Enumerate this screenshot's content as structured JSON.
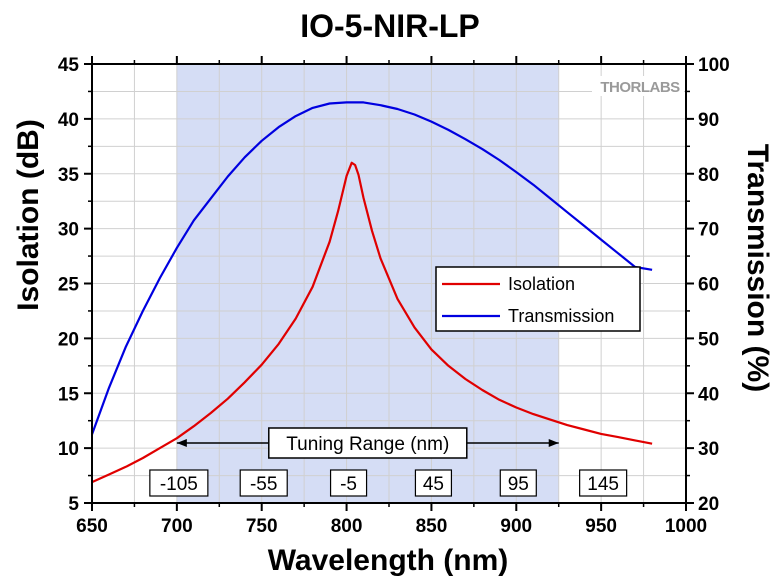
{
  "chart_data": {
    "type": "line",
    "title": "IO-5-NIR-LP",
    "xlabel": "Wavelength (nm)",
    "ylabel": "Isolation (dB)",
    "y2label": "Transmission (%)",
    "xlim": [
      650,
      1000
    ],
    "ylim": [
      5,
      45
    ],
    "y2lim": [
      20,
      100
    ],
    "xticks": [
      650,
      700,
      750,
      800,
      850,
      900,
      950,
      1000
    ],
    "yticks": [
      5,
      10,
      15,
      20,
      25,
      30,
      35,
      40,
      45
    ],
    "y2ticks": [
      20,
      30,
      40,
      50,
      60,
      70,
      80,
      90,
      100
    ],
    "grid": true,
    "legend_position": "right-middle",
    "watermark": "THORLABS",
    "tuning_range": {
      "label": "Tuning Range (nm)",
      "x_start": 700,
      "x_end": 925,
      "offsets": [
        {
          "label": "-105",
          "x": 700
        },
        {
          "label": "-55",
          "x": 750
        },
        {
          "label": "-5",
          "x": 800
        },
        {
          "label": "45",
          "x": 850
        },
        {
          "label": "95",
          "x": 900
        },
        {
          "label": "145",
          "x": 950
        }
      ]
    },
    "series": [
      {
        "name": "Isolation",
        "axis": "left",
        "color": "#e00000",
        "x": [
          650,
          660,
          670,
          680,
          690,
          700,
          710,
          720,
          730,
          740,
          750,
          760,
          770,
          780,
          790,
          795,
          800,
          803,
          805,
          807,
          810,
          815,
          820,
          830,
          840,
          850,
          860,
          870,
          880,
          890,
          900,
          910,
          920,
          930,
          940,
          950,
          960,
          970,
          980
        ],
        "y": [
          6.9,
          7.6,
          8.3,
          9.1,
          10.0,
          10.9,
          12.0,
          13.2,
          14.5,
          16.0,
          17.6,
          19.5,
          21.8,
          24.7,
          28.8,
          31.6,
          34.8,
          36.0,
          35.8,
          34.9,
          32.8,
          29.8,
          27.3,
          23.6,
          21.0,
          19.0,
          17.5,
          16.3,
          15.3,
          14.4,
          13.7,
          13.1,
          12.6,
          12.1,
          11.7,
          11.3,
          11.0,
          10.7,
          10.4
        ]
      },
      {
        "name": "Transmission",
        "axis": "right",
        "color": "#0000e0",
        "x": [
          650,
          660,
          670,
          680,
          690,
          700,
          710,
          720,
          730,
          740,
          750,
          760,
          770,
          780,
          790,
          800,
          810,
          820,
          830,
          840,
          850,
          860,
          870,
          880,
          890,
          900,
          910,
          920,
          930,
          940,
          950,
          960,
          970,
          980
        ],
        "y": [
          32.5,
          41.0,
          48.5,
          55.0,
          61.0,
          66.5,
          71.5,
          75.5,
          79.5,
          83.0,
          86.0,
          88.5,
          90.5,
          92.0,
          92.8,
          93.0,
          93.0,
          92.5,
          91.8,
          90.8,
          89.5,
          88.0,
          86.3,
          84.5,
          82.5,
          80.3,
          78.0,
          75.5,
          73.0,
          70.5,
          68.0,
          65.5,
          63.0,
          62.5
        ]
      }
    ]
  }
}
